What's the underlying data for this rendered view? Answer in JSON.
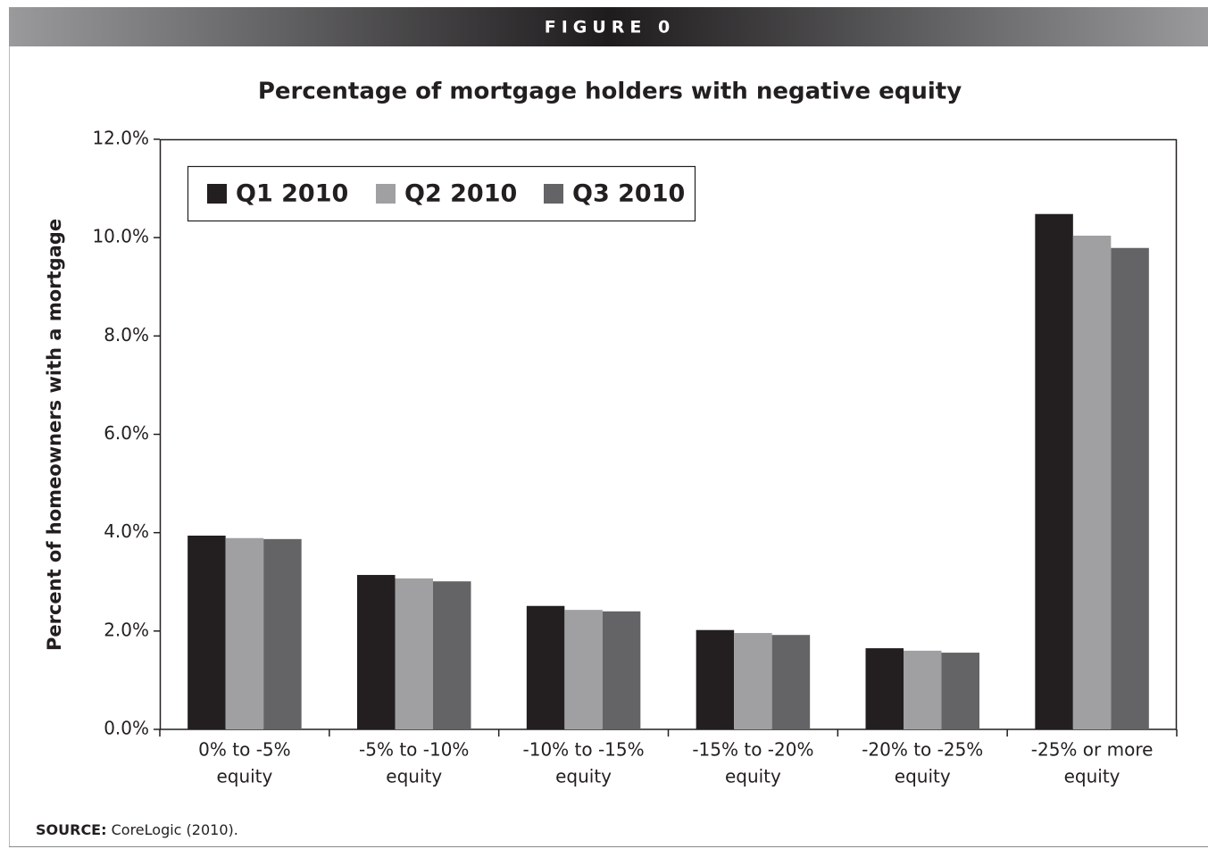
{
  "header": "FIGURE 0",
  "chart_data": {
    "type": "bar",
    "title": "Percentage of mortgage holders with negative equity",
    "y_label": "Percent of homeowners with a mortgage",
    "categories": [
      [
        "0% to -5%",
        "equity"
      ],
      [
        "-5% to -10%",
        "equity"
      ],
      [
        "-10% to -15%",
        "equity"
      ],
      [
        "-15% to -20%",
        "equity"
      ],
      [
        "-20% to -25%",
        "equity"
      ],
      [
        "-25% or more",
        "equity"
      ]
    ],
    "series": [
      {
        "name": "Q1 2010",
        "color": "#231f20",
        "values": [
          3.94,
          3.14,
          2.51,
          2.02,
          1.65,
          10.48
        ]
      },
      {
        "name": "Q2 2010",
        "color": "#a0a0a2",
        "values": [
          3.89,
          3.07,
          2.43,
          1.96,
          1.6,
          10.04
        ]
      },
      {
        "name": "Q3 2010",
        "color": "#646466",
        "values": [
          3.87,
          3.01,
          2.4,
          1.92,
          1.56,
          9.79
        ]
      }
    ],
    "ylim": [
      0,
      12
    ],
    "yticks": [
      {
        "value": 0,
        "label": "0.0%"
      },
      {
        "value": 2,
        "label": "2.0%"
      },
      {
        "value": 4,
        "label": "4.0%"
      },
      {
        "value": 6,
        "label": "6.0%"
      },
      {
        "value": 8,
        "label": "8.0%"
      },
      {
        "value": 10,
        "label": "10.0%"
      },
      {
        "value": 12,
        "label": "12.0%"
      }
    ],
    "legend": "top-left"
  },
  "source": {
    "label": "SOURCE:",
    "text": "CoreLogic (2010)."
  }
}
